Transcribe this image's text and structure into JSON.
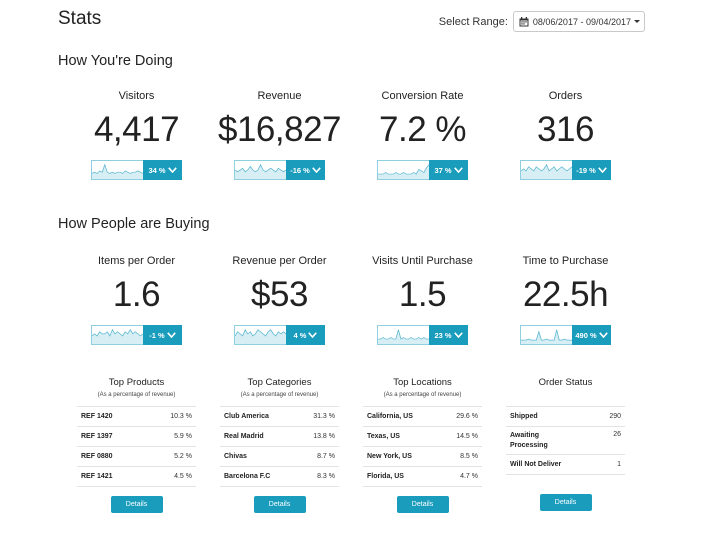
{
  "header": {
    "title": "Stats",
    "range_label": "Select Range:",
    "range_value": "08/06/2017 - 09/04/2017"
  },
  "sections": {
    "doing": "How You're Doing",
    "buying": "How People are Buying"
  },
  "doing_metrics": [
    {
      "label": "Visitors",
      "value": "4,417",
      "trend": "34 %",
      "spark": [
        3,
        4,
        3,
        5,
        4,
        10,
        4,
        3,
        4,
        3,
        4,
        4,
        3,
        5,
        4,
        3,
        4,
        4,
        5,
        4,
        3
      ]
    },
    {
      "label": "Revenue",
      "value": "$16,827",
      "trend": "-16 %",
      "spark": [
        4,
        3,
        4,
        5,
        3,
        4,
        6,
        4,
        3,
        4,
        7,
        4,
        3,
        4,
        5,
        4,
        3,
        5,
        4,
        3,
        4
      ]
    },
    {
      "label": "Conversion Rate",
      "value": "7.2 %",
      "trend": "37 %",
      "spark": [
        2,
        2,
        2,
        3,
        2,
        2,
        2,
        3,
        2,
        2,
        3,
        2,
        2,
        2,
        3,
        2,
        5,
        4,
        3,
        6,
        8
      ]
    },
    {
      "label": "Orders",
      "value": "316",
      "trend": "-19 %",
      "spark": [
        3,
        4,
        3,
        5,
        4,
        3,
        5,
        4,
        3,
        4,
        6,
        3,
        4,
        5,
        3,
        4,
        5,
        4,
        3,
        4,
        5
      ]
    }
  ],
  "buying_metrics": [
    {
      "label": "Items per Order",
      "value": "1.6",
      "trend": "-1 %",
      "spark": [
        3,
        4,
        3,
        5,
        4,
        4,
        5,
        3,
        6,
        4,
        5,
        4,
        3,
        5,
        4,
        6,
        4,
        5,
        4,
        3,
        4
      ]
    },
    {
      "label": "Revenue per Order",
      "value": "$53",
      "trend": "4 %",
      "spark": [
        3,
        5,
        4,
        3,
        6,
        4,
        5,
        3,
        4,
        6,
        5,
        4,
        3,
        5,
        6,
        4,
        3,
        5,
        4,
        5,
        4
      ]
    },
    {
      "label": "Visits Until Purchase",
      "value": "1.5",
      "trend": "23 %",
      "spark": [
        2,
        2,
        3,
        2,
        2,
        3,
        2,
        2,
        8,
        2,
        3,
        2,
        2,
        3,
        2,
        2,
        3,
        2,
        3,
        2,
        2
      ]
    },
    {
      "label": "Time to Purchase",
      "value": "22.5h",
      "trend": "490 %",
      "spark": [
        2,
        2,
        2,
        3,
        2,
        2,
        2,
        10,
        2,
        2,
        3,
        2,
        2,
        2,
        12,
        2,
        2,
        3,
        2,
        2,
        2
      ]
    }
  ],
  "tables": [
    {
      "title": "Top Products",
      "subtitle": "(As a percentage of revenue)",
      "rows": [
        {
          "name": "REF 1420",
          "value": "10.3 %"
        },
        {
          "name": "REF 1397",
          "value": "5.9 %"
        },
        {
          "name": "REF 0880",
          "value": "5.2 %"
        },
        {
          "name": "REF 1421",
          "value": "4.5 %"
        }
      ],
      "button": "Details"
    },
    {
      "title": "Top Categories",
      "subtitle": "(As a percentage of revenue)",
      "rows": [
        {
          "name": "Club America",
          "value": "31.3 %"
        },
        {
          "name": "Real Madrid",
          "value": "13.8 %"
        },
        {
          "name": "Chivas",
          "value": "8.7 %"
        },
        {
          "name": "Barcelona F.C",
          "value": "8.3 %"
        }
      ],
      "button": "Details"
    },
    {
      "title": "Top Locations",
      "subtitle": "(As a percentage of revenue)",
      "rows": [
        {
          "name": "California, US",
          "value": "29.6 %"
        },
        {
          "name": "Texas, US",
          "value": "14.5 %"
        },
        {
          "name": "New York, US",
          "value": "8.5 %"
        },
        {
          "name": "Florida, US",
          "value": "4.7 %"
        }
      ],
      "button": "Details"
    },
    {
      "title": "Order Status",
      "subtitle": "",
      "rows": [
        {
          "name": "Shipped",
          "value": "290"
        },
        {
          "name": "Awaiting Processing",
          "value": "26"
        },
        {
          "name": "Will Not Deliver",
          "value": "1"
        }
      ],
      "button": "Details"
    }
  ],
  "colors": {
    "accent": "#1a9dbd",
    "spark_line": "#5cb8d1",
    "spark_fill": "#d7eef5"
  }
}
